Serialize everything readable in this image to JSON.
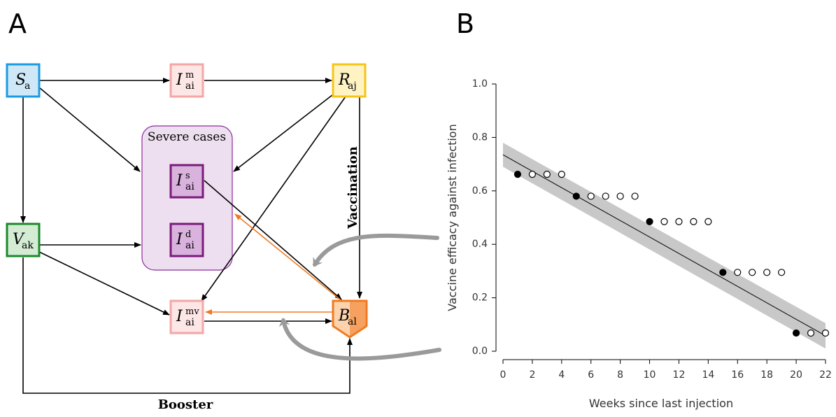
{
  "panels": [
    "A",
    "B"
  ],
  "diagram": {
    "nodes": [
      {
        "symbol": "S",
        "sub": "a"
      },
      {
        "symbol": "I",
        "sup": "m",
        "sub": "ai"
      },
      {
        "symbol": "R",
        "sub": "aj"
      },
      {
        "symbol": "V",
        "sub": "ak"
      },
      {
        "symbol": "I",
        "sup": "s",
        "sub": "ai"
      },
      {
        "symbol": "I",
        "sup": "d",
        "sub": "ai"
      },
      {
        "symbol": "I",
        "sup": "mv",
        "sub": "ai"
      },
      {
        "symbol": "B",
        "sub": "al"
      }
    ],
    "group_label": "Severe cases",
    "vaccination_label": "Vaccination",
    "booster_label": "Booster"
  },
  "chart_data": {
    "type": "scatter",
    "xlabel": "Weeks since last injection",
    "ylabel": "Vaccine efficacy against infection",
    "xlim": [
      0,
      22
    ],
    "ylim": [
      0,
      1
    ],
    "xticks": [
      0,
      2,
      4,
      6,
      8,
      10,
      12,
      14,
      16,
      18,
      20,
      22
    ],
    "yticks": [
      {
        "value": 0,
        "label": "0.0"
      },
      {
        "value": 0.2,
        "label": "0.2"
      },
      {
        "value": 0.4,
        "label": "0.4"
      },
      {
        "value": 0.6,
        "label": "0.6"
      },
      {
        "value": 0.8,
        "label": "0.8"
      },
      {
        "value": 1,
        "label": "1.0"
      }
    ],
    "series": [
      {
        "marker": "filled",
        "color": "#000000",
        "x": [
          1,
          5,
          10,
          15,
          20
        ],
        "values": [
          0.662,
          0.58,
          0.485,
          0.295,
          0.068
        ]
      },
      {
        "marker": "open",
        "color": "#000000",
        "x": [
          2,
          3,
          4,
          6,
          7,
          8,
          9,
          11,
          12,
          13,
          14,
          16,
          17,
          18,
          19,
          21,
          22
        ],
        "values": [
          0.662,
          0.662,
          0.662,
          0.58,
          0.58,
          0.58,
          0.58,
          0.485,
          0.485,
          0.485,
          0.485,
          0.295,
          0.295,
          0.295,
          0.295,
          0.068,
          0.068
        ]
      }
    ],
    "fit": {
      "color": "#000000",
      "x": [
        0,
        22
      ],
      "values": [
        0.735,
        0.058
      ]
    },
    "band": {
      "color": "#c8c8c8",
      "x": [
        0,
        22
      ],
      "lower": [
        0.69,
        0.01
      ],
      "upper": [
        0.78,
        0.105
      ]
    }
  }
}
